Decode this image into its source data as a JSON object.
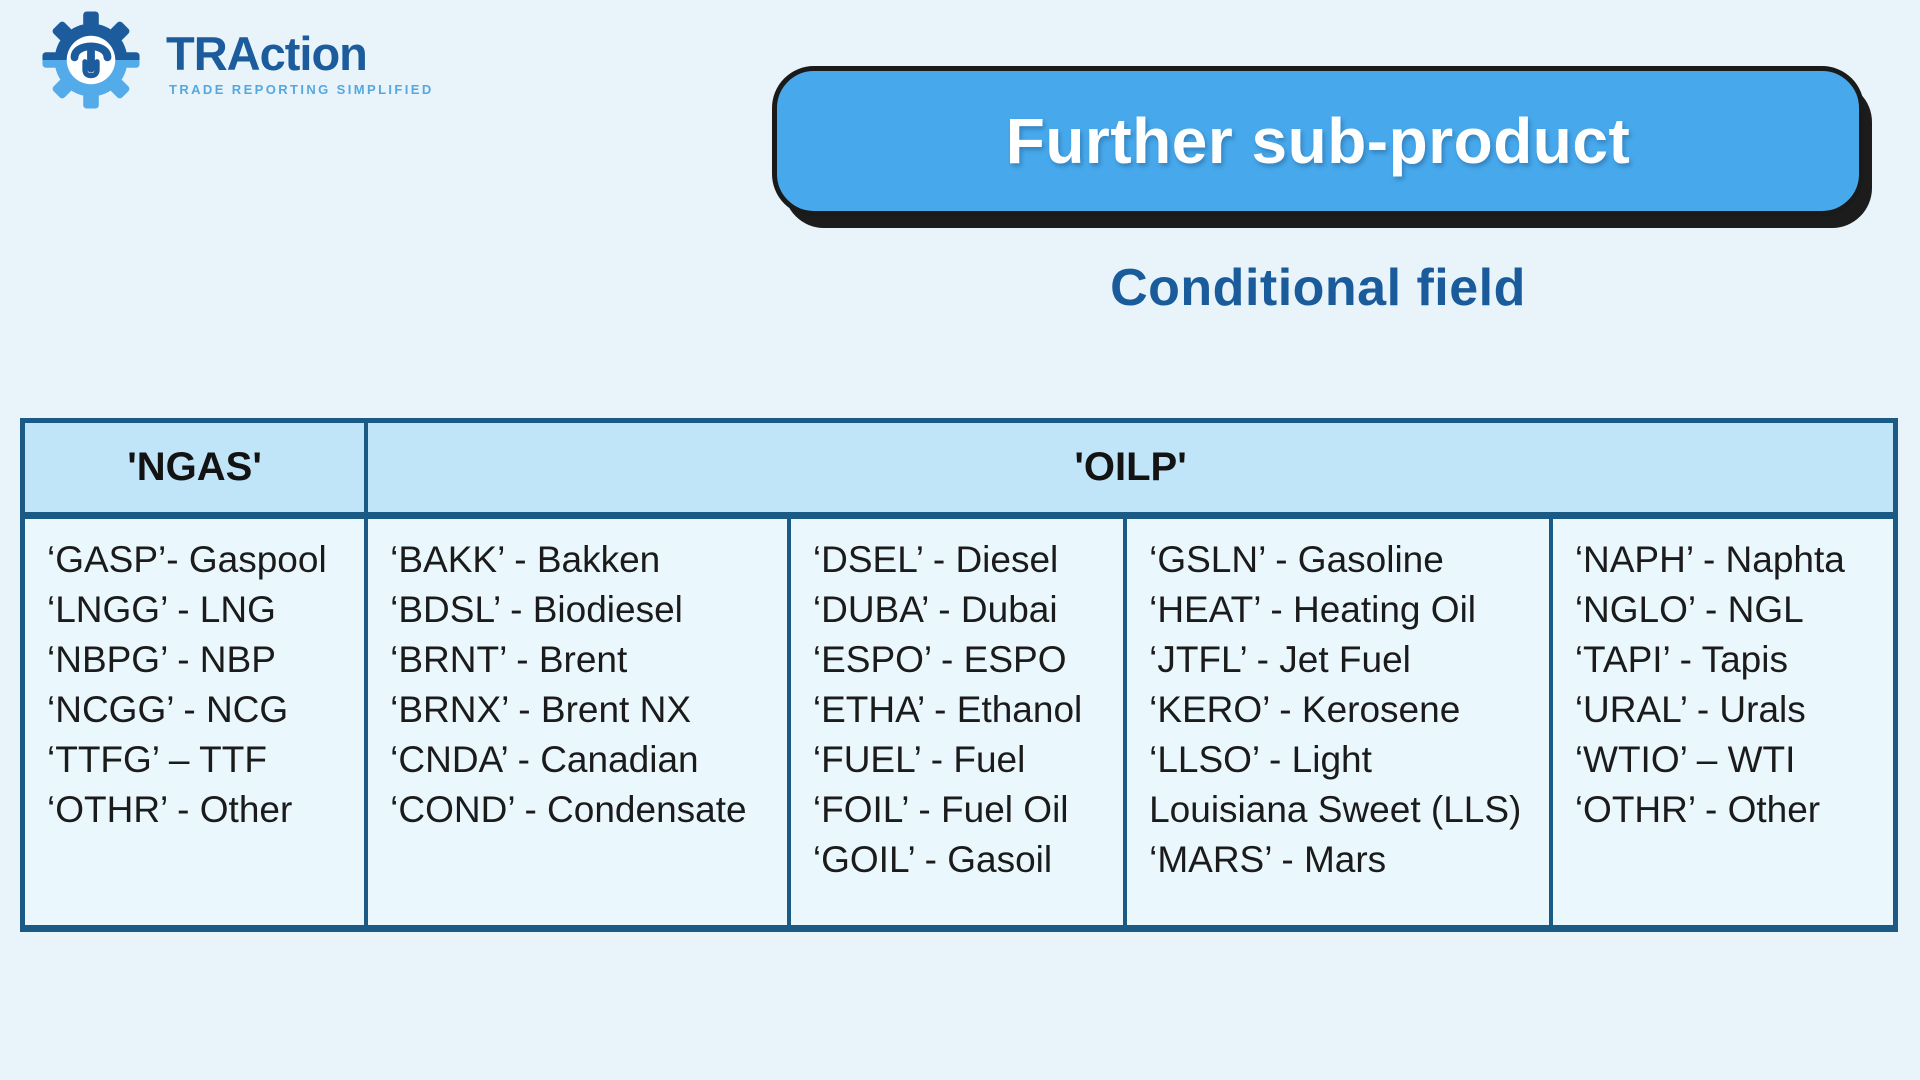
{
  "logo": {
    "brand": "TRAction",
    "tagline": "TRADE REPORTING SIMPLIFIED"
  },
  "header": {
    "title": "Further sub-product",
    "subtitle": "Conditional field"
  },
  "colors": {
    "page_background": "#E8F4FA",
    "banner_blue": "#47A9EC",
    "banner_border_black": "#1A1A1A",
    "subtitle_dark_blue": "#1A5C9B",
    "table_border_blue": "#1A5A85",
    "table_header_bg": "#C1E5F8",
    "table_body_bg": "#EAF7FD",
    "brand_dark_blue": "#1C5C9C",
    "brand_light_blue": "#55A8DF"
  },
  "table": {
    "header": {
      "ngas_label": "'NGAS'",
      "oilp_label": "'OILP'"
    },
    "columns": [
      {
        "group": "NGAS",
        "entries": [
          "‘GASP’- Gaspool",
          "‘LNGG’ - LNG",
          "‘NBPG’ - NBP",
          "‘NCGG’ - NCG",
          "‘TTFG’ – TTF",
          "‘OTHR’ - Other"
        ]
      },
      {
        "group": "OILP",
        "entries": [
          "‘BAKK’ - Bakken",
          "‘BDSL’ - Biodiesel",
          "‘BRNT’ - Brent",
          "‘BRNX’ - Brent NX",
          "‘CNDA’ - Canadian",
          "‘COND’ - Condensate"
        ]
      },
      {
        "group": "OILP",
        "entries": [
          "‘DSEL’ - Diesel",
          "‘DUBA’ - Dubai",
          "‘ESPO’ - ESPO",
          "‘ETHA’ - Ethanol",
          "‘FUEL’ - Fuel",
          "‘FOIL’ - Fuel Oil",
          "‘GOIL’ - Gasoil"
        ]
      },
      {
        "group": "OILP",
        "entries": [
          "‘GSLN’ - Gasoline",
          "‘HEAT’ - Heating Oil",
          "‘JTFL’ - Jet Fuel",
          "‘KERO’ - Kerosene",
          "‘LLSO’ - Light Louisiana Sweet (LLS)",
          "‘MARS’ - Mars"
        ]
      },
      {
        "group": "OILP",
        "entries": [
          "‘NAPH’ - Naphta",
          "‘NGLO’ - NGL",
          "‘TAPI’ - Tapis",
          "‘URAL’ - Urals",
          "‘WTIO’ – WTI",
          "‘OTHR’ - Other"
        ]
      }
    ]
  }
}
